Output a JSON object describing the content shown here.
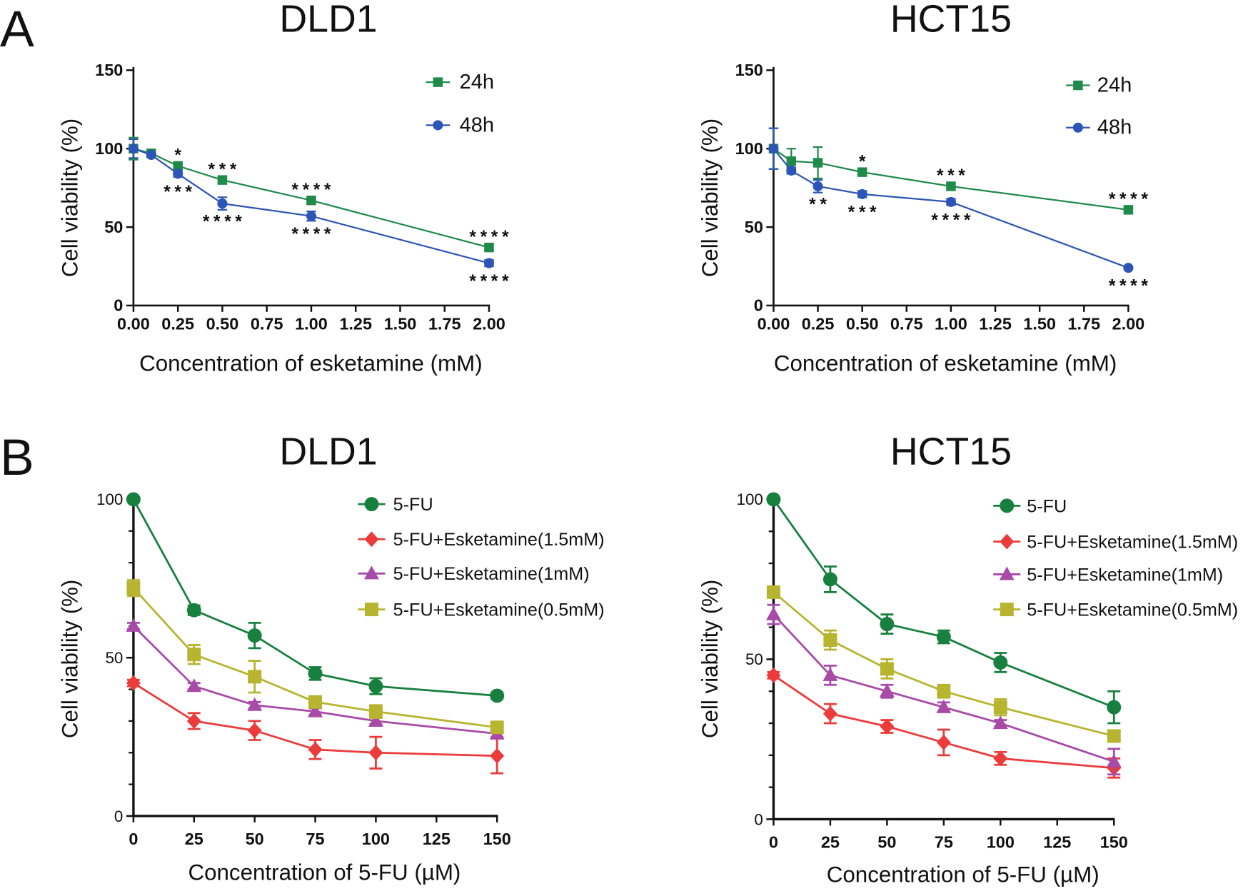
{
  "figure": {
    "panel_labels": [
      "A",
      "B"
    ]
  },
  "chart_data": [
    {
      "type": "line",
      "title": "DLD1",
      "xlabel": "Concentration of esketamine (mM)",
      "ylabel": "Cell viability (%)",
      "xlim": [
        0,
        2
      ],
      "ylim": [
        0,
        150
      ],
      "xticks": [
        0,
        0.25,
        0.5,
        0.75,
        1,
        1.25,
        1.5,
        1.75,
        2
      ],
      "xtick_labels": [
        "0.00",
        "0.25",
        "0.50",
        "0.75",
        "1.00",
        "1.25",
        "1.50",
        "1.75",
        "2.00"
      ],
      "yticks": [
        0,
        50,
        100,
        150
      ],
      "ytick_labels": [
        "0",
        "50",
        "100",
        "150"
      ],
      "x": [
        0,
        0.1,
        0.25,
        0.5,
        1,
        2
      ],
      "legend_position": "top-right",
      "series": [
        {
          "name": "24h",
          "color": "#1f8a4a",
          "marker": "square",
          "values": [
            100,
            97,
            89,
            80,
            67,
            37
          ],
          "errors": [
            7,
            1,
            2,
            2,
            2,
            2
          ],
          "significance": [
            "",
            "",
            "*",
            "***",
            "****",
            "****"
          ]
        },
        {
          "name": "48h",
          "color": "#2d55b6",
          "marker": "circle",
          "values": [
            100,
            96,
            84,
            65,
            57,
            27
          ],
          "errors": [
            6,
            1,
            2,
            4,
            3,
            2
          ],
          "significance": [
            "",
            "",
            "***",
            "****",
            "****",
            "****"
          ]
        }
      ]
    },
    {
      "type": "line",
      "title": "HCT15",
      "xlabel": "Concentration of esketamine (mM)",
      "ylabel": "Cell viability (%)",
      "xlim": [
        0,
        2
      ],
      "ylim": [
        0,
        150
      ],
      "xticks": [
        0,
        0.25,
        0.5,
        0.75,
        1,
        1.25,
        1.5,
        1.75,
        2
      ],
      "xtick_labels": [
        "0.00",
        "0.25",
        "0.50",
        "0.75",
        "1.00",
        "1.25",
        "1.50",
        "1.75",
        "2.00"
      ],
      "yticks": [
        0,
        50,
        100,
        150
      ],
      "ytick_labels": [
        "0",
        "50",
        "100",
        "150"
      ],
      "x": [
        0,
        0.1,
        0.25,
        0.5,
        1,
        2
      ],
      "legend_position": "top-right",
      "series": [
        {
          "name": "24h",
          "color": "#1f8a4a",
          "marker": "square",
          "values": [
            100,
            92,
            91,
            85,
            76,
            61
          ],
          "errors": [
            13,
            8,
            10,
            2,
            2,
            2
          ],
          "significance": [
            "",
            "",
            "",
            "*",
            "***",
            "****"
          ]
        },
        {
          "name": "48h",
          "color": "#2d55b6",
          "marker": "circle",
          "values": [
            100,
            86,
            76,
            71,
            66,
            24
          ],
          "errors": [
            13,
            2,
            4,
            2,
            2,
            1
          ],
          "significance": [
            "",
            "",
            "**",
            "***",
            "****",
            "****"
          ]
        }
      ]
    },
    {
      "type": "line",
      "title": "DLD1",
      "xlabel": "Concentration of 5-FU (µM)",
      "ylabel": "Cell viability (%)",
      "xlim": [
        0,
        150
      ],
      "ylim": [
        0,
        100
      ],
      "xticks": [
        0,
        25,
        50,
        75,
        100,
        125,
        150
      ],
      "xtick_labels": [
        "0",
        "25",
        "50",
        "75",
        "100",
        "125",
        "150"
      ],
      "yticks": [
        0,
        50,
        100
      ],
      "ytick_labels": [
        "0",
        "50",
        "100"
      ],
      "yminor_step": 10,
      "x": [
        0,
        25,
        50,
        75,
        100,
        150
      ],
      "legend_position": "top-right",
      "series": [
        {
          "name": "5-FU",
          "color": "#17803e",
          "marker": "circle",
          "values": [
            100,
            65,
            57,
            45,
            41,
            38
          ],
          "errors": [
            0.5,
            1.5,
            4,
            2,
            2.5,
            1
          ]
        },
        {
          "name": "5-FU+Esketamine(1.5mM)",
          "color": "#ec3b3b",
          "marker": "diamond",
          "values": [
            42,
            30,
            27,
            21,
            20,
            19
          ],
          "errors": [
            1,
            2.5,
            3,
            3,
            5,
            5.5
          ]
        },
        {
          "name": "5-FU+Esketamine(1mM)",
          "color": "#a84aa8",
          "marker": "triangle",
          "values": [
            60,
            41,
            35,
            33,
            30,
            26
          ],
          "errors": [
            1,
            1,
            1,
            1,
            1,
            1
          ]
        },
        {
          "name": "5-FU+Esketamine(0.5mM)",
          "color": "#b7b530",
          "marker": "square",
          "values": [
            72,
            51,
            44,
            36,
            33,
            28
          ],
          "errors": [
            2.5,
            3,
            5,
            1.5,
            2,
            1
          ]
        }
      ]
    },
    {
      "type": "line",
      "title": "HCT15",
      "xlabel": "Concentration of 5-FU (µM)",
      "ylabel": "Cell viability (%)",
      "xlim": [
        0,
        150
      ],
      "ylim": [
        0,
        100
      ],
      "xticks": [
        0,
        25,
        50,
        75,
        100,
        125,
        150
      ],
      "xtick_labels": [
        "0",
        "25",
        "50",
        "75",
        "100",
        "125",
        "150"
      ],
      "yticks": [
        0,
        50,
        100
      ],
      "ytick_labels": [
        "0",
        "50",
        "100"
      ],
      "yminor_step": 10,
      "x": [
        0,
        25,
        50,
        75,
        100,
        150
      ],
      "legend_position": "top-right",
      "series": [
        {
          "name": "5-FU",
          "color": "#17803e",
          "marker": "circle",
          "values": [
            100,
            75,
            61,
            57,
            49,
            35
          ],
          "errors": [
            0.5,
            4,
            3,
            2,
            3,
            5
          ]
        },
        {
          "name": "5-FU+Esketamine(1.5mM)",
          "color": "#ec3b3b",
          "marker": "diamond",
          "values": [
            45,
            33,
            29,
            24,
            19,
            16
          ],
          "errors": [
            1,
            3,
            2,
            4,
            2,
            3
          ]
        },
        {
          "name": "5-FU+Esketamine(1mM)",
          "color": "#a84aa8",
          "marker": "triangle",
          "values": [
            64,
            45,
            40,
            35,
            30,
            18
          ],
          "errors": [
            3,
            3,
            2,
            1.5,
            1,
            4
          ]
        },
        {
          "name": "5-FU+Esketamine(0.5mM)",
          "color": "#b7b530",
          "marker": "square",
          "values": [
            71,
            56,
            47,
            40,
            35,
            26
          ],
          "errors": [
            1.5,
            3,
            3,
            2,
            2.5,
            1.5
          ]
        }
      ]
    }
  ]
}
